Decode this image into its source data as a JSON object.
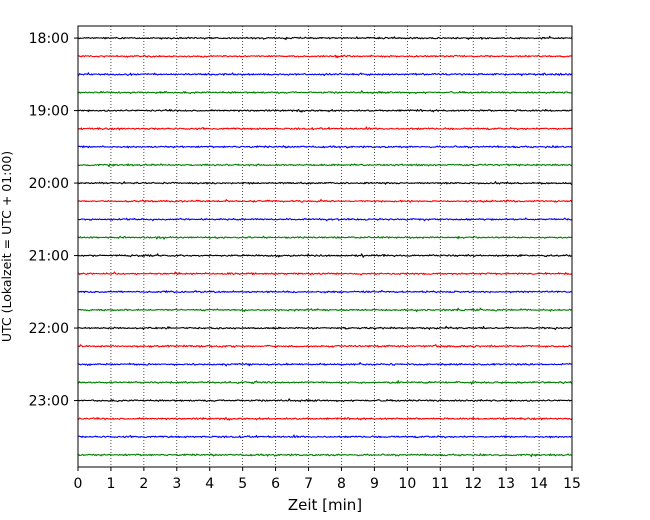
{
  "chart_data": {
    "type": "line",
    "title": "",
    "xlabel": "Zeit  [min]",
    "ylabel": "UTC (Lokalzeit = UTC + 01:00)",
    "x_ticks": [
      "0",
      "1",
      "2",
      "3",
      "4",
      "5",
      "6",
      "7",
      "8",
      "9",
      "10",
      "11",
      "12",
      "13",
      "14",
      "15"
    ],
    "xlim": [
      0,
      15
    ],
    "y_ticks": [
      "18:00",
      "19:00",
      "20:00",
      "21:00",
      "22:00",
      "23:00"
    ],
    "y_range": [
      "17:50",
      "23:55"
    ],
    "grid": "vertical dotted at each minute",
    "line_colors": [
      "#000000",
      "#ff0000",
      "#0000ff",
      "#008000"
    ],
    "series": [
      {
        "start": "18:00",
        "color": "#000000",
        "amplitude": 0.06
      },
      {
        "start": "18:15",
        "color": "#ff0000",
        "amplitude": 0.06
      },
      {
        "start": "18:30",
        "color": "#0000ff",
        "amplitude": 0.06
      },
      {
        "start": "18:45",
        "color": "#008000",
        "amplitude": 0.06
      },
      {
        "start": "19:00",
        "color": "#000000",
        "amplitude": 0.06
      },
      {
        "start": "19:15",
        "color": "#ff0000",
        "amplitude": 0.06
      },
      {
        "start": "19:30",
        "color": "#0000ff",
        "amplitude": 0.06
      },
      {
        "start": "19:45",
        "color": "#008000",
        "amplitude": 0.06
      },
      {
        "start": "20:00",
        "color": "#000000",
        "amplitude": 0.06
      },
      {
        "start": "20:15",
        "color": "#ff0000",
        "amplitude": 0.06
      },
      {
        "start": "20:30",
        "color": "#0000ff",
        "amplitude": 0.06
      },
      {
        "start": "20:45",
        "color": "#008000",
        "amplitude": 0.06
      },
      {
        "start": "21:00",
        "color": "#000000",
        "amplitude": 0.06
      },
      {
        "start": "21:15",
        "color": "#ff0000",
        "amplitude": 0.06
      },
      {
        "start": "21:30",
        "color": "#0000ff",
        "amplitude": 0.06
      },
      {
        "start": "21:45",
        "color": "#008000",
        "amplitude": 0.06
      },
      {
        "start": "22:00",
        "color": "#000000",
        "amplitude": 0.06
      },
      {
        "start": "22:15",
        "color": "#ff0000",
        "amplitude": 0.06
      },
      {
        "start": "22:30",
        "color": "#0000ff",
        "amplitude": 0.06
      },
      {
        "start": "22:45",
        "color": "#008000",
        "amplitude": 0.06
      },
      {
        "start": "23:00",
        "color": "#000000",
        "amplitude": 0.06
      },
      {
        "start": "23:15",
        "color": "#ff0000",
        "amplitude": 0.06
      },
      {
        "start": "23:30",
        "color": "#0000ff",
        "amplitude": 0.06
      },
      {
        "start": "23:45",
        "color": "#008000",
        "amplitude": 0.06
      }
    ]
  }
}
